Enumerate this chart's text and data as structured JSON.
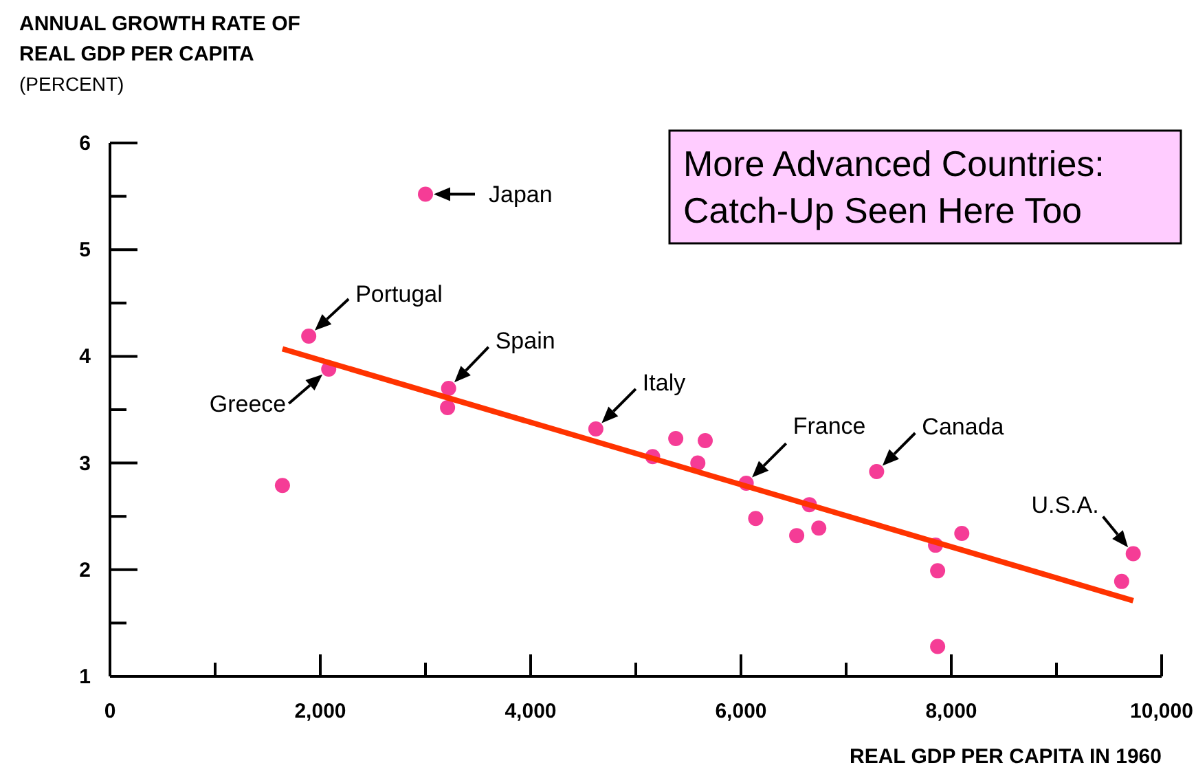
{
  "chart_data": {
    "type": "scatter",
    "ylabel": "ANNUAL GROWTH RATE OF\nREAL GDP PER CAPITA\n(PERCENT)",
    "xlabel": "REAL GDP PER CAPITA IN 1960",
    "xlim": [
      0,
      10000
    ],
    "ylim": [
      1,
      6
    ],
    "xticks": [
      0,
      {
        "value": 1000,
        "label": null
      },
      {
        "value": 2000,
        "label": "2,000"
      },
      {
        "value": 3000,
        "label": null
      },
      {
        "value": 4000,
        "label": "4,000"
      },
      {
        "value": 5000,
        "label": null
      },
      {
        "value": 6000,
        "label": "6,000"
      },
      {
        "value": 7000,
        "label": null
      },
      {
        "value": 8000,
        "label": "8,000"
      },
      {
        "value": 9000,
        "label": null
      },
      {
        "value": 10000,
        "label": "10,000"
      }
    ],
    "yticks": [
      1,
      {
        "value": 1.5,
        "label": null
      },
      2,
      {
        "value": 2.5,
        "label": null
      },
      3,
      {
        "value": 3.5,
        "label": null
      },
      4,
      {
        "value": 4.5,
        "label": null
      },
      5,
      {
        "value": 5.5,
        "label": null
      },
      6
    ],
    "grid": false,
    "series": [
      {
        "marker": "circle",
        "color": "#f53c96",
        "x": [
          3000,
          1890,
          2080,
          1640,
          3220,
          3210,
          4620,
          5160,
          5380,
          5590,
          5660,
          6050,
          6140,
          6530,
          6650,
          6740,
          7290,
          7850,
          7870,
          7870,
          8100,
          9620,
          9730
        ],
        "values": [
          5.52,
          4.19,
          3.88,
          2.79,
          3.7,
          3.52,
          3.32,
          3.06,
          3.23,
          3.0,
          3.21,
          2.81,
          2.48,
          2.32,
          2.61,
          2.39,
          2.92,
          2.23,
          1.99,
          1.28,
          2.34,
          1.89,
          2.15
        ]
      },
      {
        "type": "line",
        "color": "#ff3300",
        "x": [
          1640,
          9730
        ],
        "values": [
          4.07,
          1.71
        ]
      }
    ],
    "annotations": [
      {
        "text": "Japan",
        "x": 3000,
        "y": 5.52
      },
      {
        "text": "Portugal",
        "x": 1890,
        "y": 4.19
      },
      {
        "text": "Greece",
        "x": 2080,
        "y": 3.88
      },
      {
        "text": "Spain",
        "x": 3220,
        "y": 3.7
      },
      {
        "text": "Italy",
        "x": 4620,
        "y": 3.32
      },
      {
        "text": "France",
        "x": 6050,
        "y": 2.81
      },
      {
        "text": "Canada",
        "x": 7290,
        "y": 2.92
      },
      {
        "text": "U.S.A.",
        "x": 9730,
        "y": 2.15
      },
      "More Advanced Countries:\nCatch-Up Seen Here Too"
    ]
  }
}
